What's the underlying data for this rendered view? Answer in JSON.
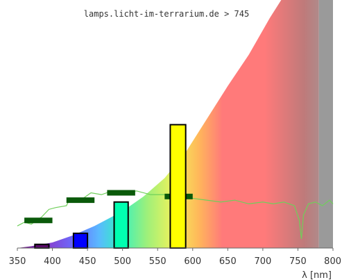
{
  "chart_data": {
    "type": "bar",
    "source_label": "lamps.licht-im-terrarium.de > 745",
    "xlabel": "λ [nm]",
    "xlim": [
      350,
      800
    ],
    "x_ticks": [
      350,
      400,
      450,
      500,
      550,
      600,
      650,
      700,
      750,
      800
    ],
    "visible_range_end_nm": 780,
    "bars": [
      {
        "x_start": 375,
        "x_end": 395,
        "value": 2,
        "color": "#5a0a6a"
      },
      {
        "x_start": 430,
        "x_end": 450,
        "value": 8,
        "color": "#0000ff"
      },
      {
        "x_start": 488,
        "x_end": 508,
        "value": 25,
        "color": "#00ffb0"
      },
      {
        "x_start": 568,
        "x_end": 590,
        "value": 67,
        "color": "#ffff00"
      }
    ],
    "reference_marks": [
      {
        "x_start": 360,
        "x_end": 400,
        "value": 15
      },
      {
        "x_start": 420,
        "x_end": 460,
        "value": 26
      },
      {
        "x_start": 478,
        "x_end": 518,
        "value": 30
      },
      {
        "x_start": 560,
        "x_end": 600,
        "value": 28
      }
    ],
    "sensitivity_curve": [
      [
        350,
        0
      ],
      [
        370,
        1
      ],
      [
        400,
        3
      ],
      [
        430,
        7
      ],
      [
        460,
        12
      ],
      [
        500,
        20
      ],
      [
        530,
        28
      ],
      [
        560,
        38
      ],
      [
        590,
        52
      ],
      [
        620,
        70
      ],
      [
        650,
        88
      ],
      [
        680,
        105
      ],
      [
        710,
        125
      ],
      [
        735,
        140
      ]
    ],
    "spectrum_line": [
      [
        350,
        12
      ],
      [
        360,
        14
      ],
      [
        370,
        13
      ],
      [
        385,
        17
      ],
      [
        395,
        21
      ],
      [
        405,
        22
      ],
      [
        420,
        23
      ],
      [
        425,
        27
      ],
      [
        440,
        26
      ],
      [
        455,
        30
      ],
      [
        470,
        29
      ],
      [
        485,
        31
      ],
      [
        500,
        30
      ],
      [
        520,
        31
      ],
      [
        540,
        29
      ],
      [
        560,
        29
      ],
      [
        580,
        29
      ],
      [
        600,
        27
      ],
      [
        620,
        26
      ],
      [
        640,
        25
      ],
      [
        660,
        26
      ],
      [
        680,
        24
      ],
      [
        700,
        25
      ],
      [
        715,
        24
      ],
      [
        730,
        25
      ],
      [
        745,
        23
      ],
      [
        752,
        15
      ],
      [
        755,
        5
      ],
      [
        758,
        18
      ],
      [
        765,
        24
      ],
      [
        775,
        25
      ],
      [
        785,
        23
      ],
      [
        795,
        26
      ],
      [
        800,
        24
      ]
    ]
  }
}
